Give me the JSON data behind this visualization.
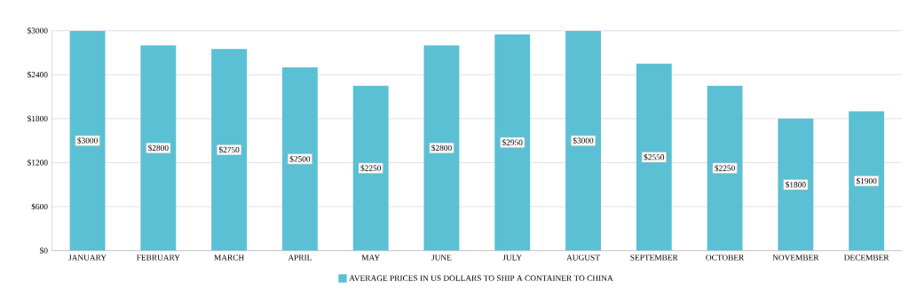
{
  "chart_data": {
    "type": "bar",
    "categories": [
      "JANUARY",
      "FEBRUARY",
      "MARCH",
      "APRIL",
      "MAY",
      "JUNE",
      "JULY",
      "AUGUST",
      "SEPTEMBER",
      "OCTOBER",
      "NOVEMBER",
      "DECEMBER"
    ],
    "series": [
      {
        "name": "AVERAGE PRICES IN US DOLLARS TO SHIP A CONTAINER TO CHINA",
        "color": "#5bc0d3",
        "values": [
          3000,
          2800,
          2750,
          2500,
          2250,
          2800,
          2950,
          3000,
          2550,
          2250,
          1800,
          1900
        ],
        "value_labels": [
          "$3000",
          "$2800",
          "$2750",
          "$2500",
          "$2250",
          "$2800",
          "$2950",
          "$3000",
          "$2550",
          "$2250",
          "$1800",
          "$1900"
        ]
      }
    ],
    "ylim": [
      0,
      3000
    ],
    "yticks": [
      {
        "value": 0,
        "label": "$0"
      },
      {
        "value": 600,
        "label": "$600"
      },
      {
        "value": 1200,
        "label": "$1200"
      },
      {
        "value": 1800,
        "label": "$1800"
      },
      {
        "value": 2400,
        "label": "$2400"
      },
      {
        "value": 3000,
        "label": "$3000"
      }
    ],
    "grid": "y",
    "legend": "bottom"
  }
}
